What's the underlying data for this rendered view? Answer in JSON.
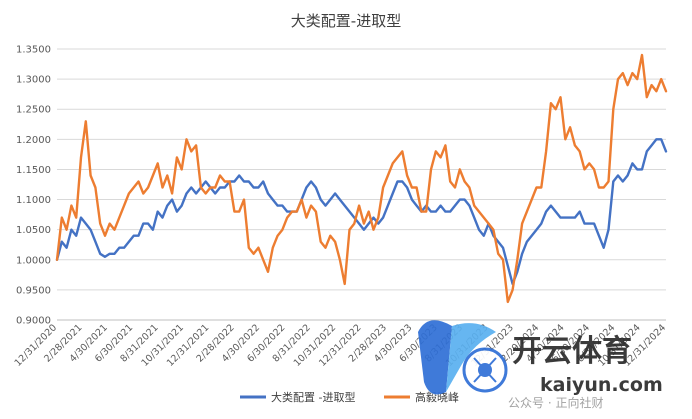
{
  "chart_data": {
    "type": "line",
    "title": "大类配置-进取型",
    "ylim": [
      0.9,
      1.35
    ],
    "yticks": [
      "0.9000",
      "0.9500",
      "1.0000",
      "1.0500",
      "1.1000",
      "1.1500",
      "1.2000",
      "1.2500",
      "1.3000",
      "1.3500"
    ],
    "grid": true,
    "legend_position": "bottom",
    "x_labels": [
      "12/31/2020",
      "2/28/2021",
      "4/30/2021",
      "6/30/2021",
      "8/31/2021",
      "10/31/2021",
      "12/31/2021",
      "2/28/2022",
      "4/30/2022",
      "6/30/2022",
      "8/31/2022",
      "10/31/2022",
      "12/31/2022",
      "2/28/2023",
      "4/30/2023",
      "6/30/2023",
      "8/31/2023",
      "10/31/2023",
      "12/31/2023",
      "2/29/2024",
      "4/30/2024",
      "6/30/2024",
      "8/31/2024",
      "10/31/2024",
      "12/31/2024"
    ],
    "series": [
      {
        "name": "大类配置 -进取型",
        "color": "#4472C4",
        "values": [
          1.0,
          1.03,
          1.02,
          1.05,
          1.04,
          1.07,
          1.06,
          1.05,
          1.03,
          1.01,
          1.005,
          1.01,
          1.01,
          1.02,
          1.02,
          1.03,
          1.04,
          1.04,
          1.06,
          1.06,
          1.05,
          1.08,
          1.07,
          1.09,
          1.1,
          1.08,
          1.09,
          1.11,
          1.12,
          1.11,
          1.12,
          1.13,
          1.12,
          1.11,
          1.12,
          1.12,
          1.13,
          1.13,
          1.14,
          1.13,
          1.13,
          1.12,
          1.12,
          1.13,
          1.11,
          1.1,
          1.09,
          1.09,
          1.08,
          1.08,
          1.08,
          1.1,
          1.12,
          1.13,
          1.12,
          1.1,
          1.09,
          1.1,
          1.11,
          1.1,
          1.09,
          1.08,
          1.07,
          1.06,
          1.05,
          1.06,
          1.07,
          1.06,
          1.07,
          1.09,
          1.11,
          1.13,
          1.13,
          1.12,
          1.1,
          1.09,
          1.08,
          1.09,
          1.08,
          1.08,
          1.09,
          1.08,
          1.08,
          1.09,
          1.1,
          1.1,
          1.09,
          1.07,
          1.05,
          1.04,
          1.06,
          1.04,
          1.03,
          1.02,
          0.99,
          0.96,
          0.98,
          1.01,
          1.03,
          1.04,
          1.05,
          1.06,
          1.08,
          1.09,
          1.08,
          1.07,
          1.07,
          1.07,
          1.07,
          1.08,
          1.06,
          1.06,
          1.06,
          1.04,
          1.02,
          1.05,
          1.13,
          1.14,
          1.13,
          1.14,
          1.16,
          1.15,
          1.15,
          1.18,
          1.19,
          1.2,
          1.2,
          1.18
        ]
      },
      {
        "name": "高毅晓峰",
        "color": "#ED7D31",
        "values": [
          1.0,
          1.07,
          1.05,
          1.09,
          1.07,
          1.17,
          1.23,
          1.14,
          1.12,
          1.06,
          1.04,
          1.06,
          1.05,
          1.07,
          1.09,
          1.11,
          1.12,
          1.13,
          1.11,
          1.12,
          1.14,
          1.16,
          1.12,
          1.14,
          1.11,
          1.17,
          1.15,
          1.2,
          1.18,
          1.19,
          1.12,
          1.11,
          1.12,
          1.12,
          1.14,
          1.13,
          1.13,
          1.08,
          1.08,
          1.1,
          1.02,
          1.01,
          1.02,
          1.0,
          0.98,
          1.02,
          1.04,
          1.05,
          1.07,
          1.08,
          1.08,
          1.1,
          1.07,
          1.09,
          1.08,
          1.03,
          1.02,
          1.04,
          1.03,
          1.0,
          0.96,
          1.05,
          1.06,
          1.09,
          1.06,
          1.08,
          1.05,
          1.07,
          1.12,
          1.14,
          1.16,
          1.17,
          1.18,
          1.14,
          1.12,
          1.12,
          1.08,
          1.08,
          1.15,
          1.18,
          1.17,
          1.19,
          1.13,
          1.12,
          1.15,
          1.13,
          1.12,
          1.09,
          1.08,
          1.07,
          1.06,
          1.05,
          1.01,
          1.0,
          0.93,
          0.95,
          1.0,
          1.06,
          1.08,
          1.1,
          1.12,
          1.12,
          1.18,
          1.26,
          1.25,
          1.27,
          1.2,
          1.22,
          1.19,
          1.18,
          1.15,
          1.16,
          1.15,
          1.12,
          1.12,
          1.13,
          1.25,
          1.3,
          1.31,
          1.29,
          1.31,
          1.3,
          1.34,
          1.27,
          1.29,
          1.28,
          1.3,
          1.28
        ]
      }
    ]
  },
  "watermark": {
    "brand": "开云体育",
    "url": "kaiyun.com",
    "note": "公众号 · 正向社财"
  }
}
